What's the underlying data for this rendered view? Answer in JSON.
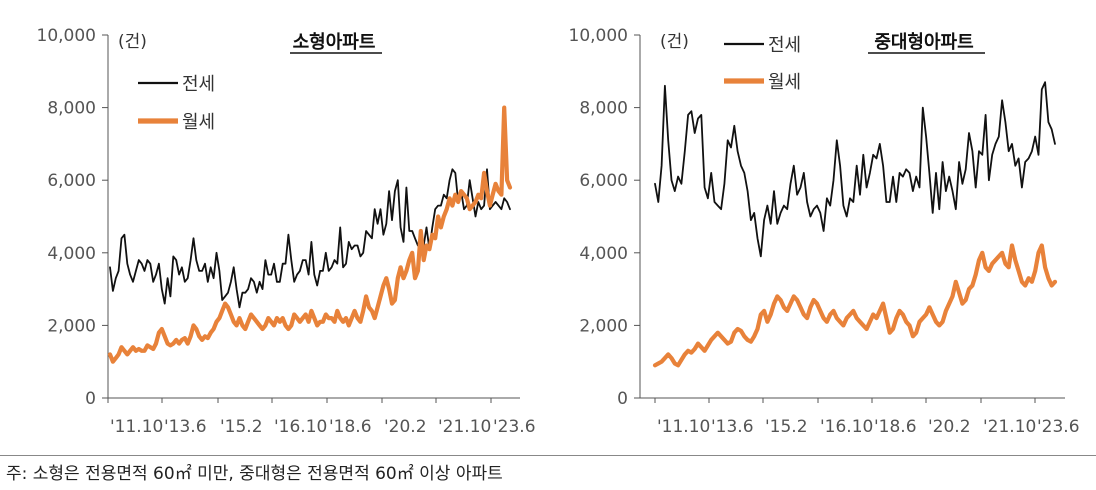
{
  "colors": {
    "jeonse": "#111111",
    "wolse": "#E8823A",
    "axis": "#555555"
  },
  "footnote": "주: 소형은 전용면적 60㎡ 미만, 중대형은 전용면적 60㎡ 이상 아파트",
  "chart_data": [
    {
      "type": "line",
      "title": "소형아파트",
      "unit_label": "(건)",
      "ylim": [
        0,
        10000
      ],
      "yticks": [
        "10,000",
        "8,000",
        "6,000",
        "4,000",
        "2,000",
        "0"
      ],
      "xtick_labels": [
        "'11.10",
        "'13.6",
        "'15.2",
        "'16.10",
        "'18.6",
        "'20.2",
        "'21.10",
        "'23.6"
      ],
      "legend_position": "top-left",
      "series": [
        {
          "name": "전세",
          "values": [
            3600,
            2950,
            3300,
            3500,
            4400,
            4500,
            3700,
            3400,
            3200,
            3500,
            3800,
            3700,
            3500,
            3800,
            3700,
            3200,
            3400,
            3700,
            3000,
            2600,
            3300,
            2800,
            3900,
            3800,
            3400,
            3600,
            3200,
            3300,
            3800,
            4400,
            3800,
            3500,
            3500,
            3700,
            3200,
            3600,
            3300,
            4000,
            3500,
            2700,
            2800,
            2900,
            3200,
            3600,
            3000,
            2500,
            2900,
            2900,
            3000,
            3300,
            3200,
            2900,
            3200,
            3000,
            3800,
            3400,
            3400,
            3700,
            3200,
            3200,
            3700,
            3700,
            4500,
            3800,
            3200,
            3400,
            3500,
            3800,
            3800,
            3400,
            4300,
            3400,
            3100,
            3500,
            3500,
            4000,
            3500,
            3600,
            3800,
            3700,
            4700,
            3600,
            3700,
            4300,
            4100,
            4200,
            4200,
            3900,
            4000,
            4600,
            4500,
            4400,
            5200,
            4800,
            5200,
            4500,
            4800,
            5700,
            4900,
            5700,
            6000,
            4700,
            4300,
            5800,
            4600,
            4600,
            4400,
            4200,
            4300,
            4200,
            4700,
            4100,
            4700,
            5200,
            5300,
            5300,
            5600,
            5500,
            6000,
            6300,
            6200,
            5400,
            5700,
            5200,
            5300,
            6000,
            5500,
            5000,
            5400,
            5200,
            5300,
            6300,
            5200,
            5300,
            5400,
            5300,
            5200,
            5500,
            5400,
            5200
          ]
        },
        {
          "name": "월세",
          "values": [
            1200,
            1000,
            1100,
            1200,
            1400,
            1300,
            1200,
            1300,
            1400,
            1300,
            1350,
            1300,
            1300,
            1450,
            1400,
            1350,
            1500,
            1800,
            1900,
            1700,
            1500,
            1450,
            1500,
            1600,
            1500,
            1600,
            1650,
            1500,
            1700,
            2000,
            1900,
            1700,
            1600,
            1700,
            1650,
            1800,
            1900,
            2100,
            2200,
            2400,
            2600,
            2500,
            2300,
            2100,
            2000,
            2200,
            2000,
            1900,
            2100,
            2300,
            2200,
            2100,
            2000,
            1900,
            2000,
            2200,
            2100,
            2000,
            2200,
            2100,
            2200,
            2000,
            1900,
            2000,
            2300,
            2200,
            2100,
            2200,
            2300,
            2100,
            2400,
            2200,
            2000,
            2100,
            2100,
            2300,
            2200,
            2200,
            2100,
            2400,
            2200,
            2100,
            2200,
            2000,
            2200,
            2400,
            2200,
            2100,
            2400,
            2800,
            2500,
            2400,
            2200,
            2500,
            2800,
            3100,
            3300,
            3000,
            2600,
            2700,
            3300,
            3600,
            3300,
            3500,
            3800,
            4000,
            3300,
            3500,
            4600,
            3800,
            4200,
            4100,
            4500,
            4400,
            5000,
            4700,
            5000,
            5200,
            5500,
            5300,
            5600,
            5400,
            5700,
            5600,
            5500,
            5200,
            5300,
            5400,
            5600,
            5500,
            6200,
            5700,
            5300,
            5600,
            5900,
            5700,
            5600,
            8000,
            6000,
            5800
          ]
        }
      ]
    },
    {
      "type": "line",
      "title": "중대형아파트",
      "unit_label": "(건)",
      "ylim": [
        0,
        10000
      ],
      "yticks": [
        "10,000",
        "8,000",
        "6,000",
        "4,000",
        "2,000",
        "0"
      ],
      "xtick_labels": [
        "'11.10",
        "'13.6",
        "'15.2",
        "'16.10",
        "'18.6",
        "'20.2",
        "'21.10",
        "'23.6"
      ],
      "legend_position": "top-left",
      "series": [
        {
          "name": "전세",
          "values": [
            5900,
            5400,
            6400,
            8600,
            7100,
            6000,
            5700,
            6100,
            5900,
            6800,
            7800,
            7900,
            7300,
            7700,
            7800,
            5800,
            5500,
            6200,
            5400,
            5300,
            5200,
            5900,
            7100,
            6900,
            7500,
            6800,
            6400,
            6200,
            5700,
            4900,
            5100,
            4400,
            3900,
            4900,
            5300,
            4800,
            5700,
            4800,
            5100,
            5300,
            5200,
            5900,
            6400,
            5600,
            5800,
            6200,
            5400,
            5000,
            5200,
            5300,
            5100,
            4600,
            5500,
            5300,
            6000,
            7100,
            6400,
            5300,
            5000,
            5500,
            5400,
            6400,
            5600,
            6700,
            5800,
            6200,
            6700,
            6600,
            7000,
            6400,
            5400,
            5400,
            6100,
            5400,
            6200,
            6100,
            6300,
            6200,
            5700,
            6100,
            5800,
            8000,
            7200,
            6200,
            5100,
            6200,
            5200,
            6500,
            5700,
            6100,
            5700,
            5200,
            6500,
            5900,
            6300,
            7300,
            6800,
            5800,
            6800,
            6700,
            7800,
            6000,
            6700,
            7000,
            7200,
            8200,
            7600,
            6800,
            7000,
            6400,
            6600,
            5800,
            6500,
            6600,
            6800,
            7200,
            6700,
            8500,
            8700,
            7600,
            7400,
            7000
          ]
        },
        {
          "name": "월세",
          "values": [
            900,
            950,
            1000,
            1100,
            1200,
            1100,
            950,
            900,
            1050,
            1200,
            1300,
            1250,
            1350,
            1500,
            1400,
            1300,
            1450,
            1600,
            1700,
            1800,
            1700,
            1600,
            1500,
            1550,
            1800,
            1900,
            1850,
            1700,
            1600,
            1550,
            1700,
            1900,
            2300,
            2400,
            2100,
            2300,
            2600,
            2800,
            2700,
            2500,
            2400,
            2600,
            2800,
            2700,
            2500,
            2300,
            2200,
            2500,
            2700,
            2600,
            2400,
            2200,
            2100,
            2300,
            2400,
            2200,
            2100,
            2000,
            2200,
            2300,
            2400,
            2200,
            2100,
            2000,
            1900,
            2100,
            2300,
            2200,
            2400,
            2600,
            2200,
            1800,
            1900,
            2200,
            2400,
            2300,
            2100,
            2000,
            1700,
            1800,
            2100,
            2200,
            2300,
            2500,
            2300,
            2100,
            2000,
            2100,
            2400,
            2600,
            2800,
            3200,
            2900,
            2600,
            2700,
            3000,
            3100,
            3400,
            3800,
            4000,
            3600,
            3500,
            3700,
            3800,
            3900,
            4000,
            3700,
            3600,
            4200,
            3800,
            3500,
            3200,
            3100,
            3300,
            3200,
            3500,
            4000,
            4200,
            3600,
            3300,
            3100,
            3200
          ]
        }
      ]
    }
  ]
}
